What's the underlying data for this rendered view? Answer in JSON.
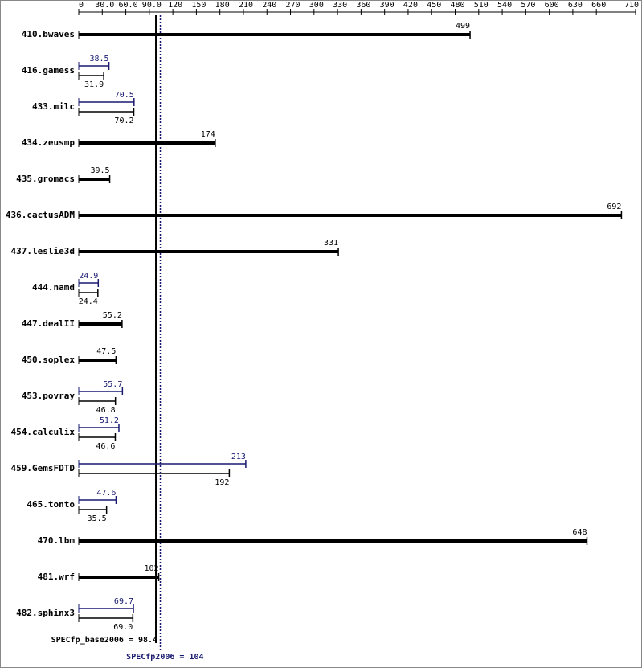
{
  "chart_data": {
    "type": "bar",
    "orientation": "horizontal",
    "categories": [
      "410.bwaves",
      "416.gamess",
      "433.milc",
      "434.zeusmp",
      "435.gromacs",
      "436.cactusADM",
      "437.leslie3d",
      "444.namd",
      "447.dealII",
      "450.soplex",
      "453.povray",
      "454.calculix",
      "459.GemsFDTD",
      "465.tonto",
      "470.lbm",
      "481.wrf",
      "482.sphinx3"
    ],
    "series": [
      {
        "name": "SPECfp2006",
        "color": "#191970",
        "values": [
          null,
          38.5,
          70.5,
          null,
          null,
          null,
          null,
          24.9,
          null,
          null,
          55.7,
          51.2,
          213,
          47.6,
          null,
          null,
          69.7
        ]
      },
      {
        "name": "SPECfp_base2006",
        "color": "#000000",
        "values": [
          499,
          31.9,
          70.2,
          174,
          39.5,
          692,
          331,
          24.4,
          55.2,
          47.5,
          46.8,
          46.6,
          192,
          35.5,
          648,
          102,
          69.0
        ],
        "value_labels": [
          "499",
          "31.9",
          "70.2",
          "174",
          "39.5",
          "692",
          "331",
          "24.4",
          "55.2",
          "47.5",
          "46.8",
          "46.6",
          "192",
          "35.5",
          "648",
          "102",
          "69.0"
        ]
      }
    ],
    "xlim": [
      0,
      710
    ],
    "xticks": [
      0,
      {
        "value": 30,
        "label": "30.0"
      },
      {
        "value": 60,
        "label": "60.0"
      },
      {
        "value": 90,
        "label": "90.0"
      },
      120,
      150,
      180,
      210,
      240,
      270,
      300,
      330,
      360,
      390,
      420,
      450,
      480,
      510,
      540,
      570,
      600,
      630,
      660,
      710
    ],
    "reference_lines": [
      {
        "label": "SPECfp_base2006 = 98.4",
        "value": 98.4,
        "color": "#000000"
      },
      {
        "label": "SPECfp2006 = 104",
        "value": 104,
        "color": "#191970"
      }
    ]
  }
}
